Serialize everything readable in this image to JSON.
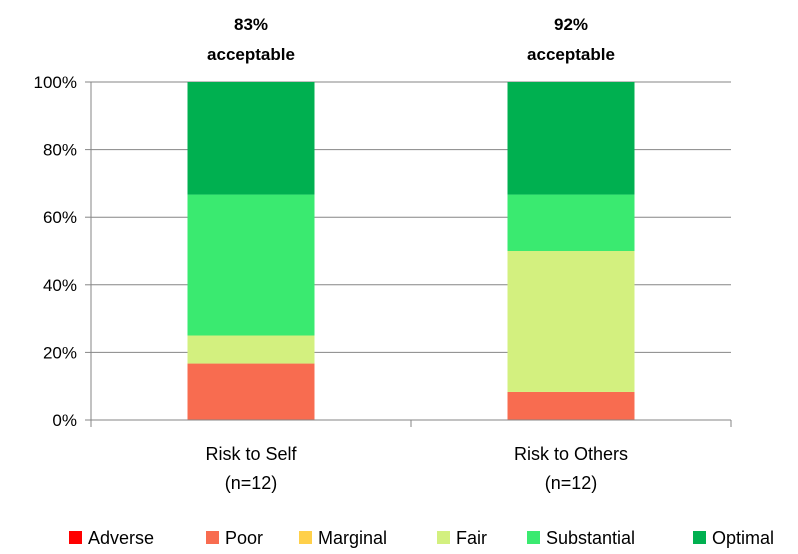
{
  "chart_data": {
    "type": "bar",
    "stacked": true,
    "categories": [
      {
        "line1": "Risk to Self",
        "line2": "(n=12)"
      },
      {
        "line1": "Risk to Others",
        "line2": "(n=12)"
      }
    ],
    "annotations": [
      {
        "line1": "83%",
        "line2": "acceptable"
      },
      {
        "line1": "92%",
        "line2": "acceptable"
      }
    ],
    "ylim": [
      0,
      100
    ],
    "y_ticks": [
      "0%",
      "20%",
      "40%",
      "60%",
      "80%",
      "100%"
    ],
    "y_tick_values": [
      0,
      20,
      40,
      60,
      80,
      100
    ],
    "grid": true,
    "legend_position": "bottom",
    "series": [
      {
        "name": "Adverse",
        "color": "#ff0000",
        "values": [
          0,
          0
        ]
      },
      {
        "name": "Poor",
        "color": "#f86c50",
        "values": [
          16.7,
          8.3
        ]
      },
      {
        "name": "Marginal",
        "color": "#ffd04a",
        "values": [
          0,
          0
        ]
      },
      {
        "name": "Fair",
        "color": "#d3f07f",
        "values": [
          8.3,
          41.7
        ]
      },
      {
        "name": "Substantial",
        "color": "#3aea70",
        "values": [
          41.7,
          16.7
        ]
      },
      {
        "name": "Optimal",
        "color": "#00b050",
        "values": [
          33.3,
          33.3
        ]
      }
    ]
  }
}
